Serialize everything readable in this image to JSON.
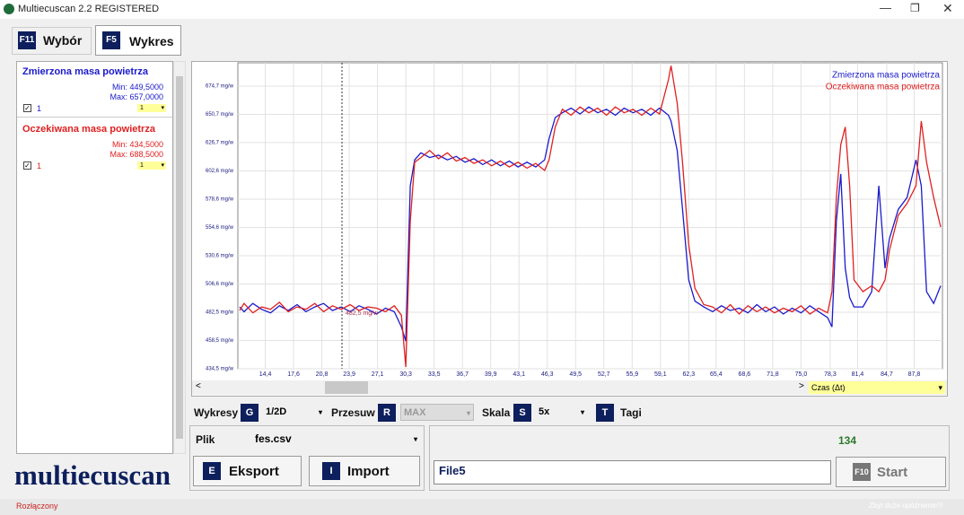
{
  "window": {
    "title": "Multiecuscan 2.2 REGISTERED"
  },
  "tabs": [
    {
      "key": "F11",
      "label": "Wybór"
    },
    {
      "key": "F5",
      "label": "Wykres"
    }
  ],
  "signals": [
    {
      "min": "Min: 449,5000",
      "max": "Max: 657,0000",
      "check": "1",
      "scale": "1"
    },
    {
      "min": "Min: 434,5000",
      "max": "Max: 688,5000",
      "check": "1",
      "scale": "1"
    }
  ],
  "logo": "multiecuscan",
  "scroll": {
    "axis_select": "Czas (Δt)"
  },
  "controls": {
    "charts": "Wykresy",
    "charts_key": "G",
    "charts_value": "1/2D",
    "shift": "Przesuw",
    "shift_key": "R",
    "shift_value": "MAX",
    "scale": "Skala",
    "scale_key": "S",
    "scale_value": "5x",
    "tags_key": "T",
    "tags": "Tagi"
  },
  "file": {
    "label": "Plik",
    "name": "fes.csv",
    "export_key": "E",
    "export": "Eksport",
    "import_key": "I",
    "import": "Import"
  },
  "session": {
    "counter": "134",
    "name": "File5",
    "start_key": "F10",
    "start": "Start"
  },
  "status": {
    "state": "Rozłączony",
    "warning": "Zbyt duże opóźnienie!!!"
  },
  "chart_data": {
    "type": "line",
    "annotation": "482,5 mg/w",
    "x": [
      11.5,
      12,
      13,
      14,
      15,
      16,
      17,
      18,
      19,
      20,
      21,
      22,
      23,
      24,
      25,
      26,
      27,
      28,
      29,
      29.8,
      30.3,
      30.8,
      31.3,
      32,
      33,
      34,
      35,
      36,
      37,
      38,
      39,
      40,
      41,
      42,
      43,
      44,
      45,
      46,
      46.5,
      47.2,
      48,
      49,
      50,
      51,
      52,
      53,
      54,
      55,
      56,
      57,
      58,
      59,
      60,
      60.3,
      61,
      61.6,
      62.3,
      63,
      64,
      65,
      66,
      67,
      68,
      69,
      70,
      71,
      72,
      73,
      74,
      75,
      76,
      77,
      78,
      78.5,
      79,
      79.5,
      80,
      80.5,
      81,
      82,
      83,
      83.8,
      84.5,
      85,
      86,
      87,
      88,
      88.6,
      89.2,
      90,
      90.8
    ],
    "series": [
      {
        "name": "Zmierzona masa powietrza",
        "color": "#1a1acc",
        "values": [
          487,
          483,
          490,
          485,
          482,
          488,
          484,
          489,
          483,
          487,
          490,
          484,
          487,
          483,
          488,
          485,
          481,
          486,
          483,
          470,
          458,
          590,
          612,
          618,
          614,
          616,
          612,
          615,
          610,
          613,
          608,
          612,
          607,
          611,
          606,
          610,
          606,
          612,
          630,
          648,
          652,
          656,
          651,
          657,
          652,
          655,
          650,
          656,
          652,
          655,
          650,
          656,
          650,
          645,
          620,
          570,
          510,
          492,
          487,
          483,
          488,
          484,
          486,
          482,
          489,
          483,
          487,
          481,
          486,
          482,
          488,
          483,
          478,
          470,
          560,
          600,
          520,
          495,
          487,
          487,
          500,
          590,
          520,
          545,
          570,
          580,
          612,
          590,
          500,
          490,
          505
        ]
      },
      {
        "name": "Oczekiwana masa powietrza",
        "color": "#e02020",
        "values": [
          484,
          490,
          482,
          487,
          485,
          491,
          483,
          487,
          485,
          490,
          483,
          488,
          485,
          489,
          484,
          487,
          486,
          483,
          488,
          480,
          436,
          560,
          610,
          614,
          620,
          613,
          618,
          611,
          614,
          609,
          612,
          607,
          611,
          606,
          610,
          605,
          609,
          603,
          612,
          640,
          655,
          650,
          657,
          652,
          656,
          650,
          657,
          652,
          655,
          650,
          656,
          651,
          680,
          692,
          660,
          610,
          540,
          503,
          489,
          487,
          482,
          489,
          481,
          488,
          483,
          487,
          482,
          486,
          483,
          488,
          481,
          486,
          482,
          500,
          580,
          625,
          640,
          590,
          510,
          500,
          505,
          500,
          510,
          535,
          565,
          575,
          590,
          645,
          610,
          580,
          555
        ]
      }
    ],
    "xlim": [
      11.3,
      91.0
    ],
    "ylim": [
      434.5,
      694.5
    ],
    "xticks": [
      {
        "value": 14.4,
        "label": "14,4"
      },
      {
        "value": 17.6,
        "label": "17,6"
      },
      {
        "value": 20.8,
        "label": "20,8"
      },
      {
        "value": 23.9,
        "label": "23,9"
      },
      {
        "value": 27.1,
        "label": "27,1"
      },
      {
        "value": 30.3,
        "label": "30,3"
      },
      {
        "value": 33.5,
        "label": "33,5"
      },
      {
        "value": 36.7,
        "label": "36,7"
      },
      {
        "value": 39.9,
        "label": "39,9"
      },
      {
        "value": 43.1,
        "label": "43,1"
      },
      {
        "value": 46.3,
        "label": "46,3"
      },
      {
        "value": 49.5,
        "label": "49,5"
      },
      {
        "value": 52.7,
        "label": "52,7"
      },
      {
        "value": 55.9,
        "label": "55,9"
      },
      {
        "value": 59.1,
        "label": "59,1"
      },
      {
        "value": 62.3,
        "label": "62,3"
      },
      {
        "value": 65.4,
        "label": "65,4"
      },
      {
        "value": 68.6,
        "label": "68,6"
      },
      {
        "value": 71.8,
        "label": "71,8"
      },
      {
        "value": 75.0,
        "label": "75,0"
      },
      {
        "value": 78.3,
        "label": "78,3"
      },
      {
        "value": 81.4,
        "label": "81,4"
      },
      {
        "value": 84.7,
        "label": "84,7"
      },
      {
        "value": 87.8,
        "label": "87,8"
      }
    ],
    "yticks": [
      {
        "value": 434.5,
        "label": "434,5 mg/w"
      },
      {
        "value": 458.5,
        "label": "458,5 mg/w"
      },
      {
        "value": 482.5,
        "label": "482,5 mg/w"
      },
      {
        "value": 506.6,
        "label": "506,6 mg/w"
      },
      {
        "value": 530.6,
        "label": "530,6 mg/w"
      },
      {
        "value": 554.6,
        "label": "554,6 mg/w"
      },
      {
        "value": 578.6,
        "label": "578,6 mg/w"
      },
      {
        "value": 602.6,
        "label": "602,6 mg/w"
      },
      {
        "value": 626.7,
        "label": "626,7 mg/w"
      },
      {
        "value": 650.7,
        "label": "650,7 mg/w"
      },
      {
        "value": 674.7,
        "label": "674,7 mg/w"
      }
    ],
    "grid": true,
    "legend": "upper right"
  }
}
